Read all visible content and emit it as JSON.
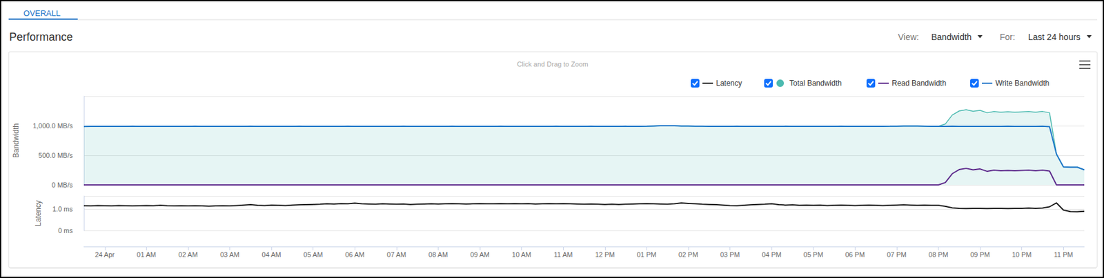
{
  "page": {
    "tab": "OVERALL",
    "heading": "Performance",
    "view_label": "View:",
    "view_value": "Bandwidth",
    "for_label": "For:",
    "for_value": "Last 24 hours",
    "hint": "Click and Drag to Zoom"
  },
  "chart_data": [
    {
      "type": "line",
      "ylabel": "Bandwidth",
      "grid": true,
      "legend": "top right",
      "tick_labels": "y",
      "xlim": [
        -30,
        1410
      ],
      "ylim": [
        0,
        1500
      ],
      "yticks": [
        {
          "value": 0,
          "label": "0 MB/s"
        },
        {
          "value": 500,
          "label": "500.0 MB/s"
        },
        {
          "value": 1000,
          "label": "1,000.0 MB/s"
        }
      ],
      "x": [
        -30,
        -20,
        -10,
        0,
        10,
        20,
        30,
        40,
        50,
        60,
        70,
        80,
        90,
        100,
        110,
        120,
        130,
        140,
        150,
        160,
        170,
        180,
        190,
        200,
        210,
        220,
        230,
        240,
        250,
        260,
        270,
        280,
        290,
        300,
        310,
        320,
        330,
        340,
        350,
        360,
        370,
        380,
        390,
        400,
        410,
        420,
        430,
        440,
        450,
        460,
        470,
        480,
        490,
        500,
        510,
        520,
        530,
        540,
        550,
        560,
        570,
        580,
        590,
        600,
        610,
        620,
        630,
        640,
        650,
        660,
        670,
        680,
        690,
        700,
        710,
        720,
        730,
        740,
        750,
        760,
        770,
        780,
        790,
        800,
        810,
        820,
        830,
        840,
        850,
        860,
        870,
        880,
        890,
        900,
        910,
        920,
        930,
        940,
        950,
        960,
        970,
        980,
        990,
        1000,
        1010,
        1020,
        1030,
        1040,
        1050,
        1060,
        1070,
        1080,
        1090,
        1100,
        1110,
        1120,
        1130,
        1140,
        1150,
        1160,
        1170,
        1180,
        1190,
        1200,
        1210,
        1220,
        1230,
        1240,
        1250,
        1260,
        1270,
        1280,
        1290,
        1300,
        1310,
        1320,
        1330,
        1340,
        1350,
        1360,
        1370,
        1380,
        1390,
        1400,
        1410
      ],
      "series": [
        {
          "name": "Total Bandwidth",
          "type": "area",
          "color": "#4cbab0",
          "values": [
            988,
            989,
            990,
            989,
            990,
            989,
            990,
            991,
            990,
            990,
            989,
            990,
            990,
            989,
            990,
            990,
            991,
            990,
            989,
            990,
            990,
            989,
            990,
            990,
            991,
            990,
            989,
            990,
            990,
            989,
            990,
            991,
            990,
            990,
            989,
            990,
            990,
            990,
            991,
            990,
            990,
            989,
            990,
            990,
            989,
            990,
            991,
            990,
            990,
            989,
            990,
            990,
            990,
            991,
            990,
            990,
            989,
            990,
            989,
            990,
            991,
            990,
            990,
            990,
            990,
            989,
            990,
            990,
            991,
            990,
            989,
            990,
            990,
            991,
            990,
            989,
            990,
            990,
            991,
            990,
            990,
            992,
            996,
            1000,
            1001,
            999,
            996,
            994,
            992,
            991,
            990,
            990,
            990,
            990,
            991,
            990,
            989,
            990,
            990,
            990,
            990,
            991,
            990,
            989,
            990,
            990,
            989,
            990,
            990,
            991,
            990,
            990,
            990,
            989,
            990,
            990,
            991,
            993,
            995,
            996,
            994,
            992,
            990,
            990,
            1030,
            1181,
            1250,
            1270,
            1244,
            1260,
            1220,
            1239,
            1230,
            1236,
            1230,
            1235,
            1240,
            1230,
            1241,
            1220,
            520,
            305,
            300,
            300,
            255
          ]
        },
        {
          "name": "Read Bandwidth",
          "type": "line",
          "color": "#5e2b8c",
          "values": [
            0,
            0,
            0,
            0,
            0,
            0,
            0,
            0,
            0,
            0,
            0,
            0,
            0,
            0,
            0,
            0,
            0,
            0,
            0,
            0,
            0,
            0,
            0,
            0,
            0,
            0,
            0,
            0,
            0,
            0,
            0,
            0,
            0,
            0,
            0,
            0,
            0,
            0,
            0,
            0,
            0,
            0,
            0,
            0,
            0,
            0,
            0,
            0,
            0,
            0,
            0,
            0,
            0,
            0,
            0,
            0,
            0,
            0,
            0,
            0,
            0,
            0,
            0,
            0,
            0,
            0,
            0,
            0,
            0,
            0,
            0,
            0,
            0,
            0,
            0,
            0,
            0,
            0,
            0,
            0,
            0,
            0,
            0,
            0,
            0,
            0,
            0,
            0,
            0,
            0,
            0,
            0,
            0,
            0,
            0,
            0,
            0,
            0,
            0,
            0,
            0,
            0,
            0,
            0,
            0,
            0,
            0,
            0,
            0,
            0,
            0,
            0,
            0,
            0,
            0,
            0,
            0,
            0,
            0,
            0,
            0,
            0,
            0,
            0,
            40,
            190,
            260,
            280,
            255,
            270,
            230,
            250,
            240,
            245,
            240,
            245,
            250,
            240,
            250,
            235,
            0,
            0,
            0,
            0,
            0
          ]
        },
        {
          "name": "Write Bandwidth",
          "type": "line",
          "color": "#1f77c9",
          "values": [
            988,
            989,
            990,
            989,
            990,
            989,
            990,
            991,
            990,
            990,
            989,
            990,
            990,
            989,
            990,
            990,
            991,
            990,
            989,
            990,
            990,
            989,
            990,
            990,
            991,
            990,
            989,
            990,
            990,
            989,
            990,
            991,
            990,
            990,
            989,
            990,
            990,
            990,
            991,
            990,
            990,
            989,
            990,
            990,
            989,
            990,
            991,
            990,
            990,
            989,
            990,
            990,
            990,
            991,
            990,
            990,
            989,
            990,
            989,
            990,
            991,
            990,
            990,
            990,
            990,
            989,
            990,
            990,
            991,
            990,
            989,
            990,
            990,
            991,
            990,
            989,
            990,
            990,
            991,
            990,
            990,
            992,
            996,
            1000,
            1001,
            999,
            996,
            994,
            992,
            991,
            990,
            990,
            990,
            990,
            991,
            990,
            989,
            990,
            990,
            990,
            990,
            991,
            990,
            989,
            990,
            990,
            989,
            990,
            990,
            991,
            990,
            990,
            990,
            989,
            990,
            990,
            991,
            993,
            995,
            996,
            994,
            992,
            990,
            990,
            990,
            991,
            990,
            990,
            989,
            990,
            990,
            989,
            990,
            991,
            990,
            990,
            990,
            990,
            991,
            985,
            520,
            305,
            300,
            300,
            255
          ]
        }
      ]
    },
    {
      "type": "line",
      "ylabel": "Latency",
      "grid": true,
      "xlim": [
        -30,
        1410
      ],
      "xticks": [
        {
          "value": 0,
          "label": "24 Apr"
        },
        {
          "value": 60,
          "label": "01 AM"
        },
        {
          "value": 120,
          "label": "02 AM"
        },
        {
          "value": 180,
          "label": "03 AM"
        },
        {
          "value": 240,
          "label": "04 AM"
        },
        {
          "value": 300,
          "label": "05 AM"
        },
        {
          "value": 360,
          "label": "06 AM"
        },
        {
          "value": 420,
          "label": "07 AM"
        },
        {
          "value": 480,
          "label": "08 AM"
        },
        {
          "value": 540,
          "label": "09 AM"
        },
        {
          "value": 600,
          "label": "10 AM"
        },
        {
          "value": 660,
          "label": "11 AM"
        },
        {
          "value": 720,
          "label": "12 PM"
        },
        {
          "value": 780,
          "label": "01 PM"
        },
        {
          "value": 840,
          "label": "02 PM"
        },
        {
          "value": 900,
          "label": "03 PM"
        },
        {
          "value": 960,
          "label": "04 PM"
        },
        {
          "value": 1020,
          "label": "05 PM"
        },
        {
          "value": 1080,
          "label": "06 PM"
        },
        {
          "value": 1140,
          "label": "07 PM"
        },
        {
          "value": 1200,
          "label": "08 PM"
        },
        {
          "value": 1260,
          "label": "09 PM"
        },
        {
          "value": 1320,
          "label": "10 PM"
        },
        {
          "value": 1380,
          "label": "11 PM"
        }
      ],
      "ylim": [
        0,
        1.6
      ],
      "yticks": [
        {
          "value": 0,
          "label": "0 ms"
        },
        {
          "value": 1,
          "label": "1.0 ms"
        }
      ],
      "x": [
        -30,
        -20,
        -10,
        0,
        10,
        20,
        30,
        40,
        50,
        60,
        70,
        80,
        90,
        100,
        110,
        120,
        130,
        140,
        150,
        160,
        170,
        180,
        190,
        200,
        210,
        220,
        230,
        240,
        250,
        260,
        270,
        280,
        290,
        300,
        310,
        320,
        330,
        340,
        350,
        360,
        370,
        380,
        390,
        400,
        410,
        420,
        430,
        440,
        450,
        460,
        470,
        480,
        490,
        500,
        510,
        520,
        530,
        540,
        550,
        560,
        570,
        580,
        590,
        600,
        610,
        620,
        630,
        640,
        650,
        660,
        670,
        680,
        690,
        700,
        710,
        720,
        730,
        740,
        750,
        760,
        770,
        780,
        790,
        800,
        810,
        820,
        830,
        840,
        850,
        860,
        870,
        880,
        890,
        900,
        910,
        920,
        930,
        940,
        950,
        960,
        970,
        980,
        990,
        1000,
        1010,
        1020,
        1030,
        1040,
        1050,
        1060,
        1070,
        1080,
        1090,
        1100,
        1110,
        1120,
        1130,
        1140,
        1150,
        1160,
        1170,
        1180,
        1190,
        1200,
        1210,
        1220,
        1230,
        1240,
        1250,
        1260,
        1270,
        1280,
        1290,
        1300,
        1310,
        1320,
        1330,
        1340,
        1350,
        1360,
        1370,
        1380,
        1390,
        1400,
        1410
      ],
      "series": [
        {
          "name": "Latency",
          "type": "line",
          "color": "#1a1a1a",
          "values": [
            1.15,
            1.14,
            1.16,
            1.15,
            1.14,
            1.16,
            1.15,
            1.14,
            1.15,
            1.16,
            1.15,
            1.17,
            1.15,
            1.14,
            1.15,
            1.14,
            1.15,
            1.14,
            1.13,
            1.14,
            1.15,
            1.14,
            1.16,
            1.18,
            1.2,
            1.17,
            1.16,
            1.18,
            1.17,
            1.16,
            1.18,
            1.19,
            1.2,
            1.21,
            1.22,
            1.24,
            1.23,
            1.25,
            1.24,
            1.27,
            1.24,
            1.23,
            1.22,
            1.24,
            1.23,
            1.22,
            1.23,
            1.21,
            1.22,
            1.23,
            1.24,
            1.23,
            1.24,
            1.25,
            1.24,
            1.23,
            1.24,
            1.25,
            1.24,
            1.24,
            1.25,
            1.24,
            1.25,
            1.24,
            1.25,
            1.23,
            1.24,
            1.25,
            1.24,
            1.25,
            1.24,
            1.23,
            1.22,
            1.23,
            1.22,
            1.21,
            1.22,
            1.21,
            1.22,
            1.23,
            1.24,
            1.25,
            1.24,
            1.23,
            1.22,
            1.24,
            1.28,
            1.26,
            1.24,
            1.22,
            1.21,
            1.2,
            1.18,
            1.16,
            1.15,
            1.17,
            1.19,
            1.21,
            1.22,
            1.24,
            1.2,
            1.18,
            1.19,
            1.17,
            1.18,
            1.17,
            1.18,
            1.16,
            1.17,
            1.18,
            1.17,
            1.16,
            1.17,
            1.18,
            1.17,
            1.16,
            1.17,
            1.18,
            1.19,
            1.18,
            1.17,
            1.18,
            1.17,
            1.17,
            1.12,
            1.05,
            1.03,
            1.02,
            1.03,
            1.03,
            1.02,
            1.03,
            1.03,
            1.02,
            1.03,
            1.03,
            1.04,
            1.03,
            1.04,
            1.1,
            1.28,
            0.95,
            0.88,
            0.87,
            0.89
          ]
        }
      ]
    }
  ]
}
